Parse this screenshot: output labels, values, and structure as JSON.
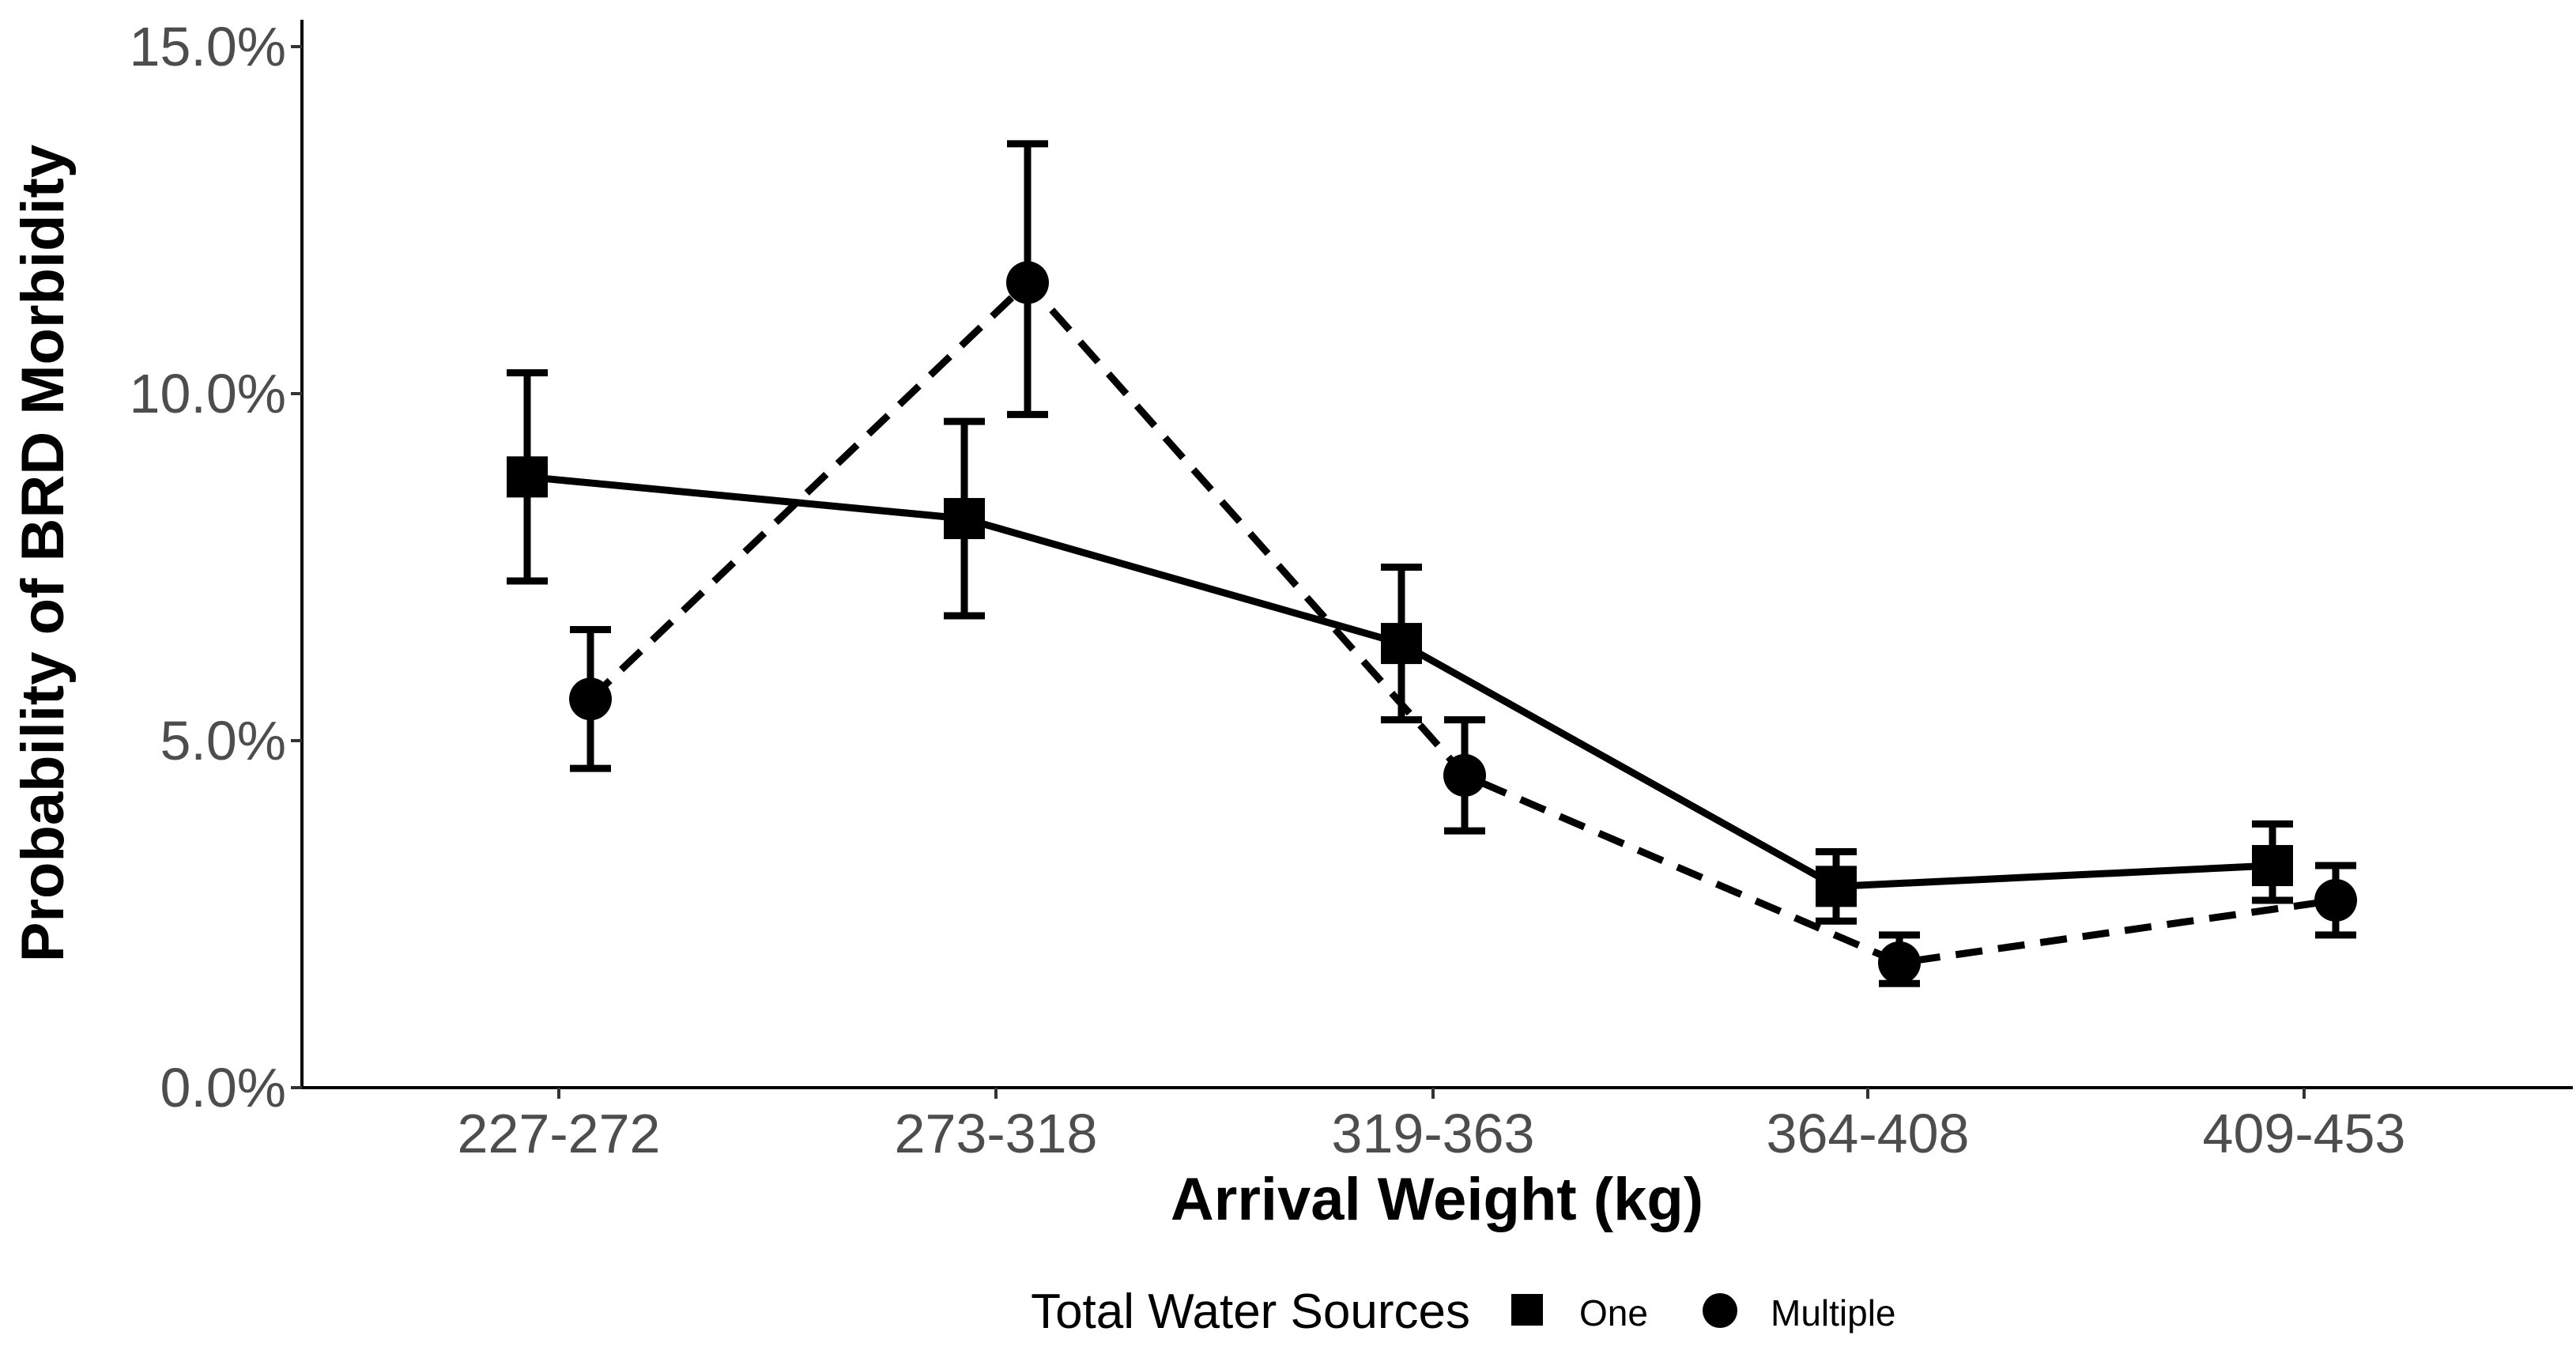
{
  "chart_data": {
    "type": "line",
    "title": "",
    "xlabel": "Arrival Weight (kg)",
    "ylabel": "Probability of BRD Morbidity",
    "categories": [
      "227-272",
      "273-318",
      "319-363",
      "364-408",
      "409-453"
    ],
    "ylim": [
      0,
      0.155
    ],
    "yticks": [
      0,
      0.05,
      0.1,
      0.15
    ],
    "ytick_labels": [
      "0.0%",
      "5.0%",
      "10.0%",
      "15.0%"
    ],
    "grid": false,
    "legend": {
      "title": "Total Water Sources",
      "position": "bottom"
    },
    "series": [
      {
        "name": "One",
        "marker": "square",
        "line": "solid",
        "dodge": "left",
        "values": [
          0.088,
          0.082,
          0.064,
          0.029,
          0.032
        ],
        "lower": [
          0.073,
          0.068,
          0.053,
          0.024,
          0.027
        ],
        "upper": [
          0.103,
          0.096,
          0.075,
          0.034,
          0.038
        ]
      },
      {
        "name": "Multiple",
        "marker": "circle",
        "line": "dashed",
        "dodge": "right",
        "values": [
          0.056,
          0.116,
          0.045,
          0.018,
          0.027
        ],
        "lower": [
          0.046,
          0.097,
          0.037,
          0.015,
          0.022
        ],
        "upper": [
          0.066,
          0.136,
          0.053,
          0.022,
          0.032
        ]
      }
    ],
    "colors": {
      "ink": "#000000",
      "tick_text": "#4d4d4d",
      "background": "#ffffff"
    }
  }
}
